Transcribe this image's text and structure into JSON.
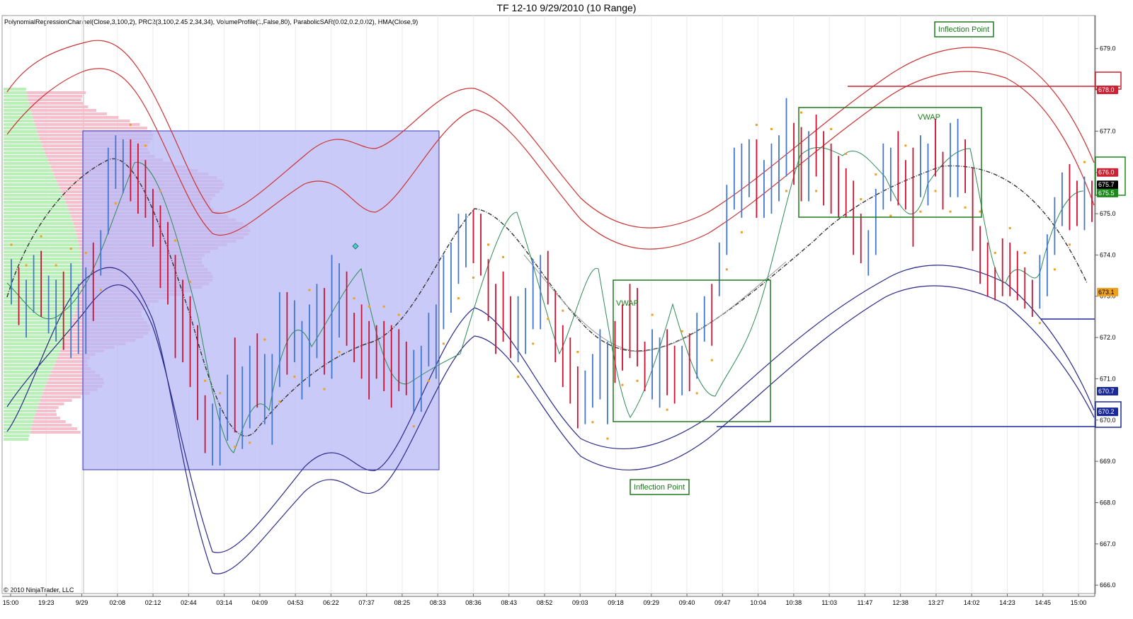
{
  "title": "TF 12-10  9/29/2010 (10 Range)",
  "indicators": "PolynomialRegressionChannel(Close,3,100,2),  PRC2(3,100,2.45,2,34,34),  VolumeProfile(1,False,80),  ParabolicSAR(0.02,0.2,0.02),  HMA(Close,9)",
  "copyright": "© 2010 NinjaTrader, LLC",
  "chart_data": {
    "type": "bar",
    "ylim": [
      665.9,
      679.2
    ],
    "y_ticks": [
      "679.0",
      "678.0",
      "677.0",
      "676.0",
      "675.0",
      "674.0",
      "673.0",
      "672.0",
      "671.0",
      "670.0",
      "669.0",
      "668.0",
      "667.0",
      "666.0"
    ],
    "x_ticks": [
      "15:00",
      "19:23",
      "9/29",
      "02:08",
      "02:12",
      "02:44",
      "03:14",
      "04:09",
      "04:53",
      "06:22",
      "07:37",
      "08:25",
      "08:33",
      "08:36",
      "08:43",
      "08:52",
      "09:03",
      "09:18",
      "09:29",
      "09:40",
      "09:47",
      "10:04",
      "10:38",
      "11:03",
      "11:47",
      "12:38",
      "13:27",
      "14:02",
      "14:23",
      "14:45",
      "15:00"
    ],
    "bars": [
      {
        "o": 673.3,
        "c": 673.8,
        "h": 673.9,
        "l": 672.8
      },
      {
        "o": 673.6,
        "c": 673.1,
        "h": 673.7,
        "l": 672.3
      },
      {
        "o": 672.3,
        "c": 672.8,
        "h": 673.4,
        "l": 672.0
      },
      {
        "o": 673.3,
        "c": 673.9,
        "h": 674.0,
        "l": 672.6
      },
      {
        "o": 673.3,
        "c": 672.8,
        "h": 674.1,
        "l": 672.5
      },
      {
        "o": 672.9,
        "c": 673.4,
        "h": 673.5,
        "l": 672.1
      },
      {
        "o": 672.6,
        "c": 673.1,
        "h": 673.4,
        "l": 671.9
      },
      {
        "o": 673.4,
        "c": 672.9,
        "h": 673.6,
        "l": 671.7
      },
      {
        "o": 671.8,
        "c": 672.3,
        "h": 673.8,
        "l": 671.5
      },
      {
        "o": 672.3,
        "c": 672.8,
        "h": 673.3,
        "l": 671.6
      },
      {
        "o": 672.3,
        "c": 672.8,
        "h": 673.7,
        "l": 671.6
      },
      {
        "o": 673.5,
        "c": 673.0,
        "h": 674.3,
        "l": 672.4
      },
      {
        "o": 673.5,
        "c": 674.0,
        "h": 674.6,
        "l": 673.5
      },
      {
        "o": 675.0,
        "c": 676.0,
        "h": 676.6,
        "l": 674.5
      },
      {
        "o": 675.8,
        "c": 676.4,
        "h": 676.9,
        "l": 675.6
      },
      {
        "o": 676.0,
        "c": 676.5,
        "h": 676.8,
        "l": 675.5
      },
      {
        "o": 676.6,
        "c": 676.0,
        "h": 676.8,
        "l": 675.3
      },
      {
        "o": 676.1,
        "c": 675.6,
        "h": 676.7,
        "l": 675.0
      },
      {
        "o": 675.8,
        "c": 675.3,
        "h": 676.3,
        "l": 674.9
      },
      {
        "o": 675.2,
        "c": 674.7,
        "h": 675.6,
        "l": 674.2
      },
      {
        "o": 674.5,
        "c": 674.0,
        "h": 675.2,
        "l": 673.2
      },
      {
        "o": 673.8,
        "c": 673.3,
        "h": 674.8,
        "l": 672.8
      },
      {
        "o": 673.3,
        "c": 672.8,
        "h": 674.0,
        "l": 671.5
      },
      {
        "o": 672.7,
        "c": 672.2,
        "h": 673.4,
        "l": 671.4
      },
      {
        "o": 672.2,
        "c": 671.7,
        "h": 673.0,
        "l": 670.8
      },
      {
        "o": 671.8,
        "c": 671.3,
        "h": 672.3,
        "l": 670.0
      },
      {
        "o": 670.3,
        "c": 669.8,
        "h": 670.6,
        "l": 669.2
      },
      {
        "o": 669.6,
        "c": 670.1,
        "h": 670.4,
        "l": 668.9
      },
      {
        "o": 669.4,
        "c": 669.9,
        "h": 670.3,
        "l": 668.9
      },
      {
        "o": 670.1,
        "c": 670.6,
        "h": 671.1,
        "l": 669.5
      },
      {
        "o": 671.9,
        "c": 671.4,
        "h": 672.0,
        "l": 669.7
      },
      {
        "o": 670.3,
        "c": 670.8,
        "h": 671.3,
        "l": 669.3
      },
      {
        "o": 670.6,
        "c": 671.1,
        "h": 671.8,
        "l": 669.8
      },
      {
        "o": 671.9,
        "c": 671.4,
        "h": 672.1,
        "l": 670.3
      },
      {
        "o": 670.2,
        "c": 670.7,
        "h": 671.6,
        "l": 669.9
      },
      {
        "o": 670.9,
        "c": 671.4,
        "h": 671.6,
        "l": 669.4
      },
      {
        "o": 671.6,
        "c": 672.1,
        "h": 673.1,
        "l": 670.8
      },
      {
        "o": 673.0,
        "c": 672.5,
        "h": 673.1,
        "l": 671.1
      },
      {
        "o": 672.0,
        "c": 672.5,
        "h": 672.9,
        "l": 671.4
      },
      {
        "o": 671.3,
        "c": 671.8,
        "h": 672.4,
        "l": 670.5
      },
      {
        "o": 671.3,
        "c": 671.8,
        "h": 672.8,
        "l": 670.8
      },
      {
        "o": 672.3,
        "c": 672.8,
        "h": 673.3,
        "l": 671.5
      },
      {
        "o": 673.2,
        "c": 672.7,
        "h": 673.2,
        "l": 671.1
      },
      {
        "o": 671.6,
        "c": 672.1,
        "h": 674.0,
        "l": 671.0
      },
      {
        "o": 673.0,
        "c": 673.5,
        "h": 673.8,
        "l": 672.0
      },
      {
        "o": 673.0,
        "c": 672.5,
        "h": 673.6,
        "l": 671.8
      },
      {
        "o": 672.3,
        "c": 671.8,
        "h": 672.6,
        "l": 671.4
      },
      {
        "o": 672.3,
        "c": 671.8,
        "h": 672.8,
        "l": 671.0
      },
      {
        "o": 671.9,
        "c": 671.4,
        "h": 672.4,
        "l": 670.5
      },
      {
        "o": 671.8,
        "c": 671.3,
        "h": 672.3,
        "l": 671.0
      },
      {
        "o": 671.9,
        "c": 671.4,
        "h": 672.4,
        "l": 670.7
      },
      {
        "o": 671.4,
        "c": 670.9,
        "h": 672.3,
        "l": 670.3
      },
      {
        "o": 671.8,
        "c": 671.3,
        "h": 672.2,
        "l": 670.7
      },
      {
        "o": 671.3,
        "c": 670.8,
        "h": 671.9,
        "l": 670.6
      },
      {
        "o": 671.0,
        "c": 671.5,
        "h": 671.7,
        "l": 670.2
      },
      {
        "o": 670.8,
        "c": 671.3,
        "h": 671.8,
        "l": 670.2
      },
      {
        "o": 671.5,
        "c": 672.0,
        "h": 672.6,
        "l": 671.3
      },
      {
        "o": 671.7,
        "c": 672.2,
        "h": 672.8,
        "l": 671.0
      },
      {
        "o": 672.7,
        "c": 673.2,
        "h": 674.0,
        "l": 672.2
      },
      {
        "o": 673.2,
        "c": 673.7,
        "h": 674.3,
        "l": 672.6
      },
      {
        "o": 674.1,
        "c": 674.6,
        "h": 675.0,
        "l": 673.3
      },
      {
        "o": 674.7,
        "c": 675.0,
        "h": 675.0,
        "l": 673.7
      },
      {
        "o": 674.8,
        "c": 674.3,
        "h": 675.1,
        "l": 673.8
      },
      {
        "o": 674.6,
        "c": 674.1,
        "h": 675.0,
        "l": 673.5
      },
      {
        "o": 673.8,
        "c": 673.3,
        "h": 673.9,
        "l": 672.4
      },
      {
        "o": 672.8,
        "c": 672.3,
        "h": 673.3,
        "l": 671.6
      },
      {
        "o": 673.2,
        "c": 672.7,
        "h": 673.6,
        "l": 671.9
      },
      {
        "o": 672.7,
        "c": 672.2,
        "h": 673.0,
        "l": 671.5
      },
      {
        "o": 672.0,
        "c": 672.5,
        "h": 673.0,
        "l": 671.4
      },
      {
        "o": 672.2,
        "c": 672.7,
        "h": 673.2,
        "l": 671.6
      },
      {
        "o": 673.3,
        "c": 673.8,
        "h": 673.9,
        "l": 672.2
      },
      {
        "o": 673.0,
        "c": 673.5,
        "h": 674.0,
        "l": 672.2
      },
      {
        "o": 673.8,
        "c": 673.3,
        "h": 674.1,
        "l": 672.8
      },
      {
        "o": 672.8,
        "c": 672.3,
        "h": 673.1,
        "l": 671.4
      },
      {
        "o": 671.9,
        "c": 671.4,
        "h": 672.3,
        "l": 670.8
      },
      {
        "o": 671.5,
        "c": 671.0,
        "h": 672.0,
        "l": 670.4
      },
      {
        "o": 671.0,
        "c": 670.5,
        "h": 671.3,
        "l": 669.8
      },
      {
        "o": 670.3,
        "c": 670.8,
        "h": 671.2,
        "l": 669.9
      },
      {
        "o": 670.8,
        "c": 671.3,
        "h": 671.6,
        "l": 670.3
      },
      {
        "o": 671.0,
        "c": 671.5,
        "h": 672.2,
        "l": 670.5
      },
      {
        "o": 671.2,
        "c": 671.7,
        "h": 671.9,
        "l": 669.9
      },
      {
        "o": 671.9,
        "c": 671.4,
        "h": 672.4,
        "l": 670.9
      },
      {
        "o": 672.2,
        "c": 671.7,
        "h": 672.8,
        "l": 671.2
      },
      {
        "o": 672.6,
        "c": 672.1,
        "h": 673.3,
        "l": 671.5
      },
      {
        "o": 673.0,
        "c": 672.5,
        "h": 673.2,
        "l": 671.3
      },
      {
        "o": 671.8,
        "c": 671.3,
        "h": 671.9,
        "l": 670.7
      },
      {
        "o": 671.0,
        "c": 671.5,
        "h": 672.2,
        "l": 670.5
      },
      {
        "o": 671.2,
        "c": 671.7,
        "h": 672.0,
        "l": 670.3
      },
      {
        "o": 671.9,
        "c": 671.4,
        "h": 672.2,
        "l": 670.6
      },
      {
        "o": 671.3,
        "c": 670.8,
        "h": 671.8,
        "l": 670.4
      },
      {
        "o": 670.8,
        "c": 671.3,
        "h": 671.8,
        "l": 670.6
      },
      {
        "o": 671.7,
        "c": 671.2,
        "h": 672.1,
        "l": 670.7
      },
      {
        "o": 671.4,
        "c": 671.9,
        "h": 672.6,
        "l": 671.0
      },
      {
        "o": 672.1,
        "c": 672.6,
        "h": 673.0,
        "l": 671.9
      },
      {
        "o": 673.2,
        "c": 672.7,
        "h": 673.3,
        "l": 671.8
      },
      {
        "o": 673.2,
        "c": 673.7,
        "h": 674.3,
        "l": 673.0
      },
      {
        "o": 674.3,
        "c": 674.8,
        "h": 675.7,
        "l": 674.0
      },
      {
        "o": 675.3,
        "c": 675.8,
        "h": 676.6,
        "l": 675.1
      },
      {
        "o": 675.9,
        "c": 676.4,
        "h": 676.7,
        "l": 674.9
      },
      {
        "o": 675.8,
        "c": 676.3,
        "h": 676.8,
        "l": 675.4
      },
      {
        "o": 676.0,
        "c": 675.5,
        "h": 676.8,
        "l": 674.9
      },
      {
        "o": 675.5,
        "c": 676.0,
        "h": 676.3,
        "l": 674.9
      },
      {
        "o": 675.8,
        "c": 676.3,
        "h": 676.7,
        "l": 675.0
      },
      {
        "o": 676.1,
        "c": 676.6,
        "h": 676.9,
        "l": 675.3
      },
      {
        "o": 676.4,
        "c": 676.9,
        "h": 677.8,
        "l": 675.9
      },
      {
        "o": 676.9,
        "c": 676.4,
        "h": 677.2,
        "l": 675.7
      },
      {
        "o": 676.5,
        "c": 676.0,
        "h": 677.1,
        "l": 675.3
      },
      {
        "o": 675.9,
        "c": 676.4,
        "h": 677.0,
        "l": 675.3
      },
      {
        "o": 677.2,
        "c": 676.7,
        "h": 677.4,
        "l": 675.9
      },
      {
        "o": 676.5,
        "c": 676.0,
        "h": 677.0,
        "l": 675.2
      },
      {
        "o": 676.2,
        "c": 675.7,
        "h": 676.7,
        "l": 675.0
      },
      {
        "o": 676.0,
        "c": 675.5,
        "h": 676.4,
        "l": 674.9
      },
      {
        "o": 675.9,
        "c": 675.4,
        "h": 676.1,
        "l": 674.9
      },
      {
        "o": 675.6,
        "c": 675.1,
        "h": 675.8,
        "l": 674.0
      },
      {
        "o": 674.5,
        "c": 674.0,
        "h": 675.0,
        "l": 673.8
      },
      {
        "o": 674.0,
        "c": 674.5,
        "h": 674.6,
        "l": 673.5
      },
      {
        "o": 674.5,
        "c": 675.0,
        "h": 675.6,
        "l": 674.0
      },
      {
        "o": 675.6,
        "c": 676.1,
        "h": 676.7,
        "l": 675.1
      },
      {
        "o": 675.8,
        "c": 676.3,
        "h": 676.6,
        "l": 675.3
      },
      {
        "o": 676.7,
        "c": 676.2,
        "h": 677.0,
        "l": 675.2
      },
      {
        "o": 676.1,
        "c": 675.6,
        "h": 676.3,
        "l": 675.1
      },
      {
        "o": 675.8,
        "c": 675.3,
        "h": 676.6,
        "l": 674.2
      },
      {
        "o": 675.8,
        "c": 676.3,
        "h": 676.9,
        "l": 675.4
      },
      {
        "o": 676.1,
        "c": 676.6,
        "h": 676.7,
        "l": 675.2
      },
      {
        "o": 676.9,
        "c": 676.4,
        "h": 677.3,
        "l": 675.9
      },
      {
        "o": 676.2,
        "c": 675.7,
        "h": 676.5,
        "l": 675.1
      },
      {
        "o": 676.2,
        "c": 676.7,
        "h": 677.2,
        "l": 675.4
      },
      {
        "o": 676.4,
        "c": 676.9,
        "h": 677.3,
        "l": 675.4
      },
      {
        "o": 676.6,
        "c": 676.1,
        "h": 676.8,
        "l": 675.5
      },
      {
        "o": 675.6,
        "c": 675.1,
        "h": 676.1,
        "l": 674.1
      },
      {
        "o": 674.5,
        "c": 674.0,
        "h": 674.7,
        "l": 673.3
      },
      {
        "o": 674.0,
        "c": 673.5,
        "h": 674.3,
        "l": 673.0
      },
      {
        "o": 673.5,
        "c": 673.0,
        "h": 673.7,
        "l": 672.9
      },
      {
        "o": 673.8,
        "c": 673.3,
        "h": 674.4,
        "l": 673.0
      },
      {
        "o": 673.6,
        "c": 673.1,
        "h": 674.3,
        "l": 673.0
      },
      {
        "o": 673.8,
        "c": 673.3,
        "h": 674.1,
        "l": 672.9
      },
      {
        "o": 673.4,
        "c": 672.9,
        "h": 673.7,
        "l": 672.7
      },
      {
        "o": 673.3,
        "c": 672.8,
        "h": 673.4,
        "l": 672.5
      },
      {
        "o": 673.1,
        "c": 673.6,
        "h": 674.0,
        "l": 672.7
      },
      {
        "o": 673.7,
        "c": 674.2,
        "h": 674.5,
        "l": 673.0
      },
      {
        "o": 674.5,
        "c": 675.0,
        "h": 675.4,
        "l": 674.0
      },
      {
        "o": 675.3,
        "c": 675.8,
        "h": 676.0,
        "l": 674.7
      },
      {
        "o": 675.9,
        "c": 675.4,
        "h": 676.2,
        "l": 674.6
      },
      {
        "o": 675.6,
        "c": 675.1,
        "h": 675.8,
        "l": 674.7
      },
      {
        "o": 675.1,
        "c": 675.6,
        "h": 675.9,
        "l": 674.6
      },
      {
        "o": 675.7,
        "c": 675.2,
        "h": 675.8,
        "l": 674.8
      }
    ],
    "price_tags": [
      {
        "value": 678.0,
        "label": "678.0",
        "color": "#cc2233"
      },
      {
        "value": 676.0,
        "label": "676.0",
        "color": "#cc2233"
      },
      {
        "value": 675.7,
        "label": "675.7",
        "color": "#000000"
      },
      {
        "value": 675.5,
        "label": "675.5",
        "color": "#1a8a1a"
      },
      {
        "value": 673.1,
        "label": "673.1",
        "color": "#f0a020"
      },
      {
        "value": 670.7,
        "label": "670.7",
        "color": "#1a2a9a"
      },
      {
        "value": 670.2,
        "label": "670.2",
        "color": "#1a2a9a"
      }
    ],
    "annotations": [
      {
        "text": "Inflection Point",
        "type": "box-label",
        "near": "top-right"
      },
      {
        "text": "Inflection Point",
        "type": "box-label",
        "near": "bottom-center"
      },
      {
        "text": "VWAP",
        "type": "text"
      },
      {
        "text": "VWAP",
        "type": "text"
      }
    ],
    "colors": {
      "up": "#4477cc",
      "down": "#cc1133",
      "upper_channel": "#cc3333",
      "lower_channel": "#2a2a8a",
      "sar": "#f0a020",
      "hma": "#2e8b57",
      "box": "#1e7a1e",
      "value_area": "#b8b8f5"
    }
  }
}
